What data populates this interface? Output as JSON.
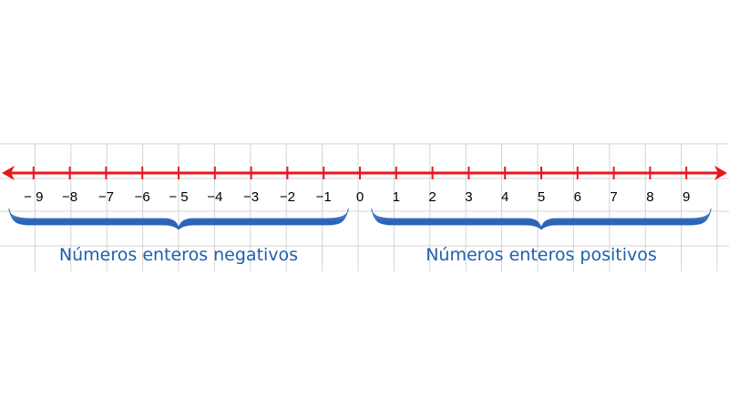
{
  "number_line": {
    "ticks": [
      {
        "value": -9,
        "label": "− 9"
      },
      {
        "value": -8,
        "label": "−8"
      },
      {
        "value": -7,
        "label": "−7"
      },
      {
        "value": -6,
        "label": "−6"
      },
      {
        "value": -5,
        "label": "− 5"
      },
      {
        "value": -4,
        "label": "−4"
      },
      {
        "value": -3,
        "label": "−3"
      },
      {
        "value": -2,
        "label": "−2"
      },
      {
        "value": -1,
        "label": "−1"
      },
      {
        "value": 0,
        "label": "0"
      },
      {
        "value": 1,
        "label": "1"
      },
      {
        "value": 2,
        "label": "2"
      },
      {
        "value": 3,
        "label": "3"
      },
      {
        "value": 4,
        "label": "4"
      },
      {
        "value": 5,
        "label": "5"
      },
      {
        "value": 6,
        "label": "6"
      },
      {
        "value": 7,
        "label": "7"
      },
      {
        "value": 8,
        "label": "8"
      },
      {
        "value": 9,
        "label": "9"
      }
    ],
    "braces": [
      {
        "name": "negative",
        "from": -9,
        "to": -1,
        "label": "Números enteros negativos"
      },
      {
        "name": "positive",
        "from": 1,
        "to": 9,
        "label": "Números enteros positivos"
      }
    ]
  },
  "colors": {
    "line": "#e8161b",
    "text": "#1f5fae",
    "brace": "#2b63b8",
    "brace_highlight": "#7fa9e6",
    "grid": "#d4d4d4"
  }
}
